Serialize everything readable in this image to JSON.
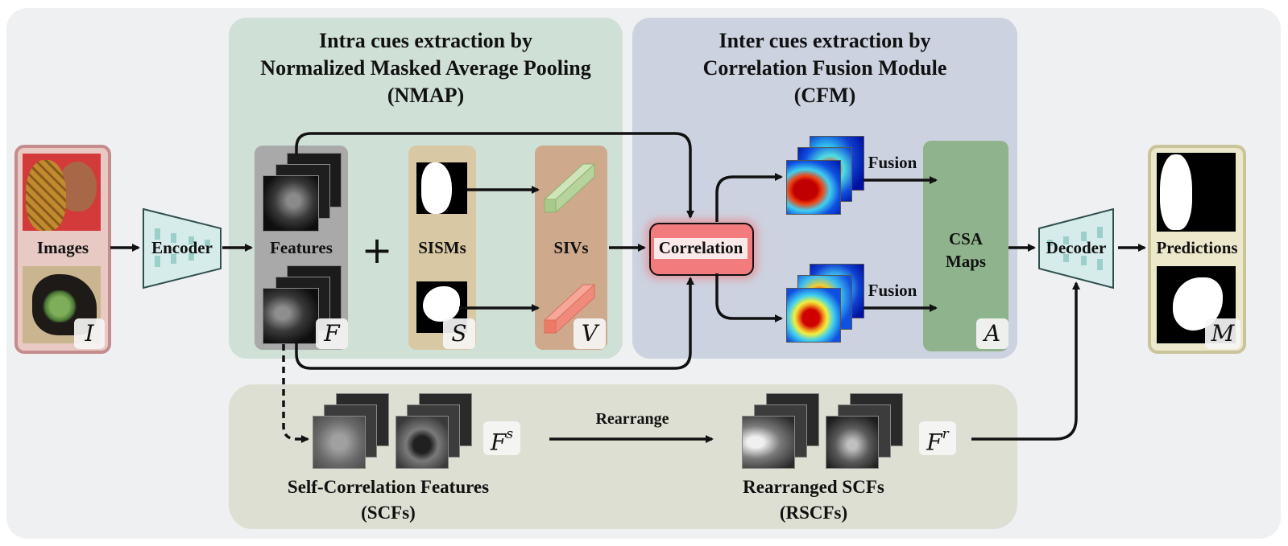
{
  "intra": {
    "title_line1": "Intra cues extraction by",
    "title_line2": "Normalized Masked Average Pooling",
    "title_line3": "(NMAP)"
  },
  "inter": {
    "title_line1": "Inter cues extraction by",
    "title_line2": "Correlation Fusion Module",
    "title_line3": "(CFM)"
  },
  "images": {
    "label": "Images",
    "symbol": "I"
  },
  "encoder": {
    "label": "Encoder"
  },
  "features": {
    "label": "Features",
    "symbol": "F"
  },
  "plus": "+",
  "sisms": {
    "label": "SISMs",
    "symbol": "S"
  },
  "sivs": {
    "label": "SIVs",
    "symbol": "V"
  },
  "correlation": {
    "label": "Correlation"
  },
  "fusion": {
    "label_top": "Fusion",
    "label_bottom": "Fusion"
  },
  "csa": {
    "label_line1": "CSA",
    "label_line2": "Maps",
    "symbol": "A"
  },
  "decoder": {
    "label": "Decoder"
  },
  "predictions": {
    "label": "Predictions",
    "symbol": "M"
  },
  "scf": {
    "label_line1": "Self-Correlation Features",
    "label_line2": "(SCFs)",
    "symbol": "F",
    "superscript": "s"
  },
  "rearrange": {
    "label": "Rearrange"
  },
  "rscf": {
    "label_line1": "Rearranged SCFs",
    "label_line2": "(RSCFs)",
    "symbol": "F",
    "superscript": "r"
  },
  "colors": {
    "outer_bg": "#eef0f2",
    "intra_panel": "#cfe0d6",
    "inter_panel": "#cdd2e0",
    "bottom_panel": "#dedfd3",
    "images_frame": "#c48c8c",
    "predictions_frame": "#c9c49a",
    "features_strip": "#a9a9a9",
    "sisms_strip": "#d9c8a4",
    "sivs_strip": "#cfa98c",
    "csa_strip": "#8fb48d",
    "correlation_box": "#f27b7d",
    "encoder_fill": "#d6ecea",
    "siv_green": "#b7d39c",
    "siv_red": "#f08a7a"
  }
}
